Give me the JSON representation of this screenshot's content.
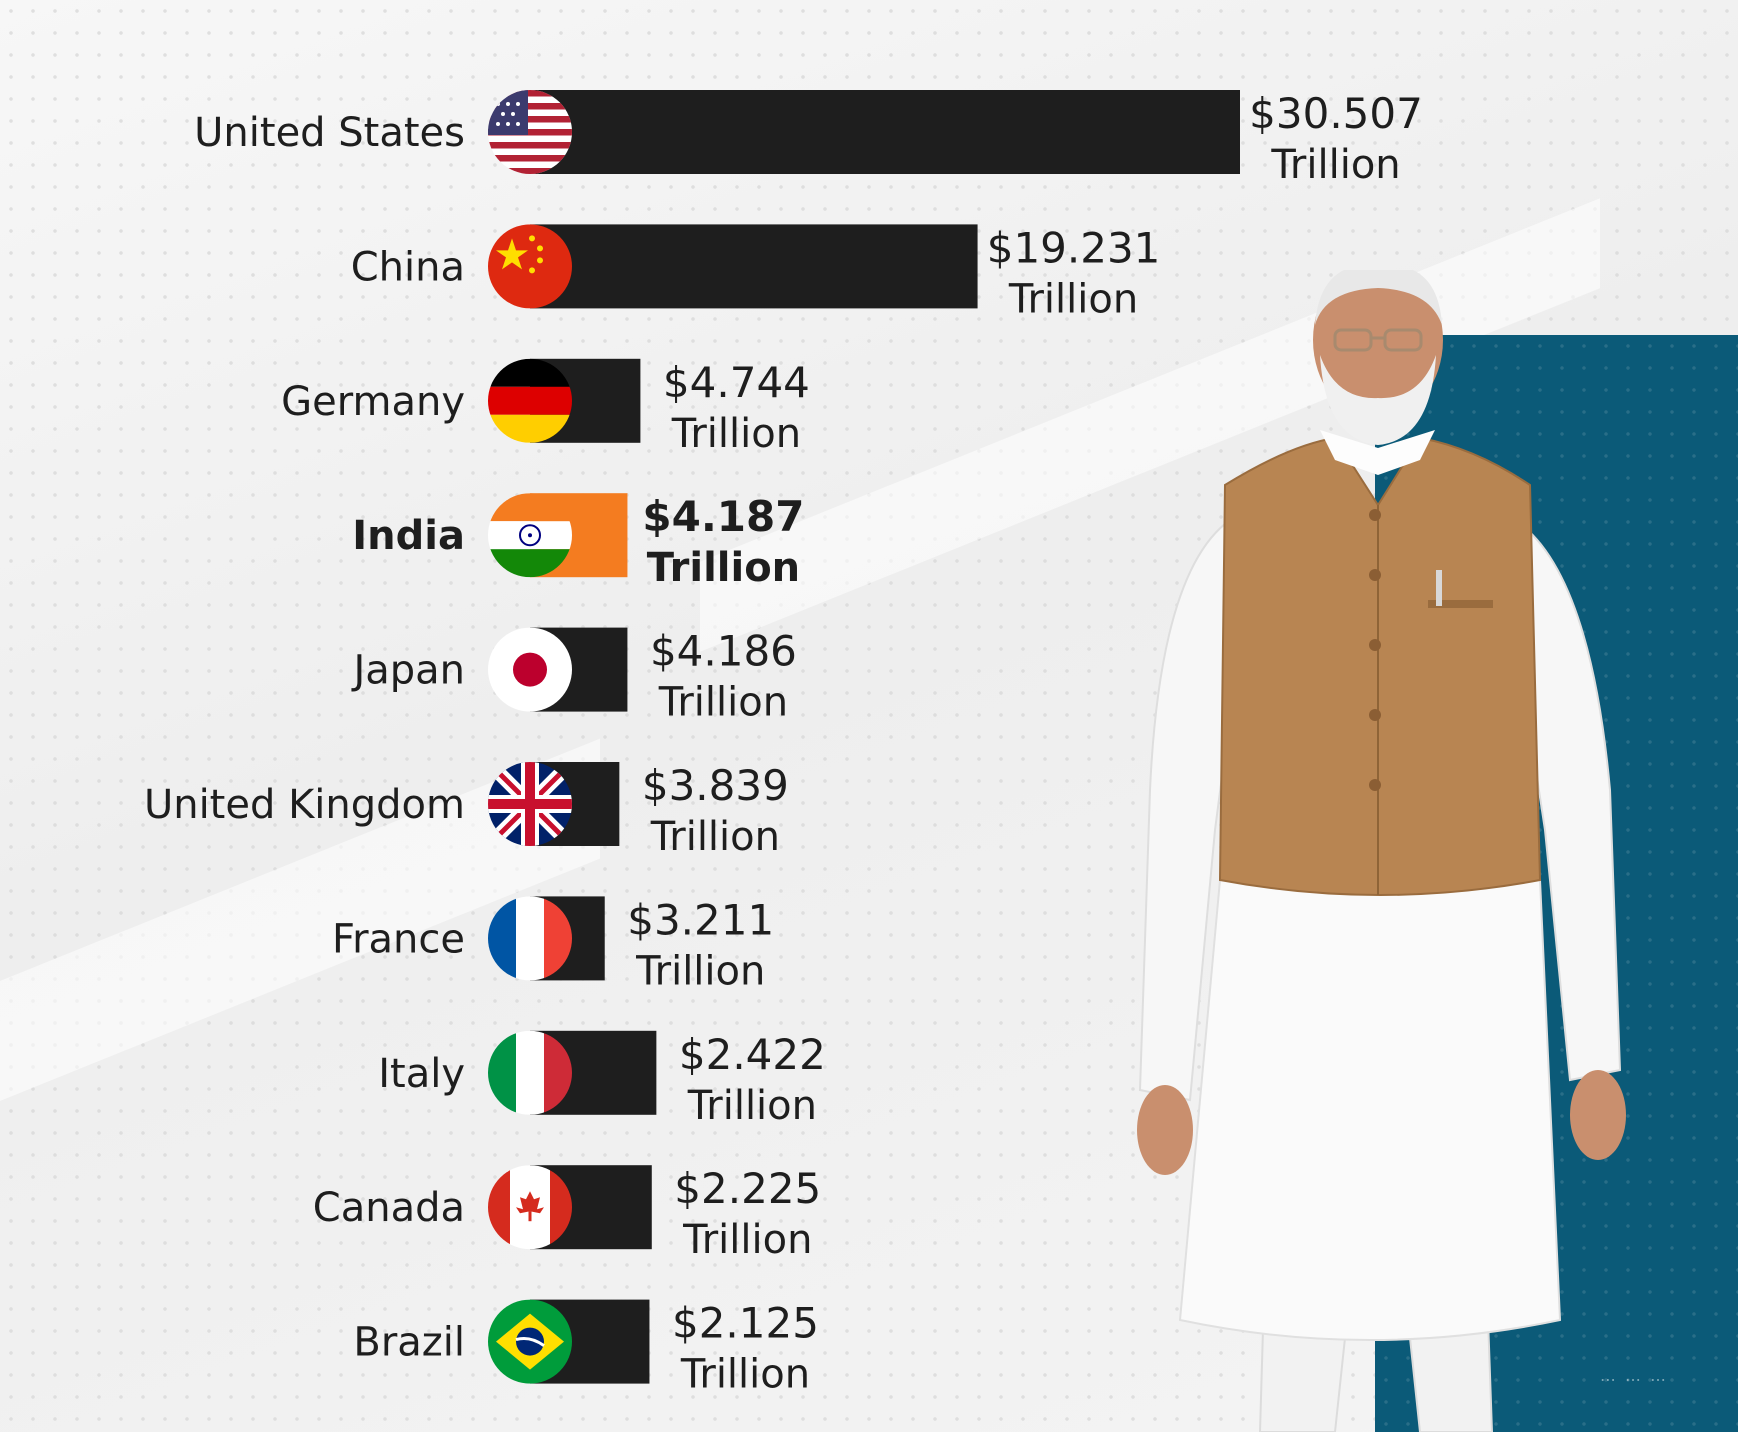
{
  "chart_data": {
    "type": "bar",
    "orientation": "horizontal",
    "categories": [
      "United States",
      "China",
      "Germany",
      "India",
      "Japan",
      "United Kingdom",
      "France",
      "Italy",
      "Canada",
      "Brazil"
    ],
    "values": [
      30.507,
      19.231,
      4.744,
      4.187,
      4.186,
      3.839,
      3.211,
      2.422,
      2.225,
      2.125
    ],
    "value_labels": [
      "$30.507",
      "$19.231",
      "$4.744",
      "$4.187",
      "$4.186",
      "$3.839",
      "$3.211",
      "$2.422",
      "$2.225",
      "$2.125"
    ],
    "unit_label": "Trillion",
    "highlight": "India",
    "flags": [
      "us-flag-icon",
      "china-flag-icon",
      "germany-flag-icon",
      "india-flag-icon",
      "japan-flag-icon",
      "uk-flag-icon",
      "france-flag-icon",
      "italy-flag-icon",
      "canada-flag-icon",
      "brazil-flag-icon"
    ],
    "colors": {
      "bar": "#1e1e1e",
      "highlight_bar": "#f47c20",
      "text": "#1e1e1e"
    },
    "xlim": [
      0,
      30.507
    ]
  },
  "background": {
    "panel_color": "#0b5a78"
  },
  "figure": {
    "name": "person-photo"
  }
}
